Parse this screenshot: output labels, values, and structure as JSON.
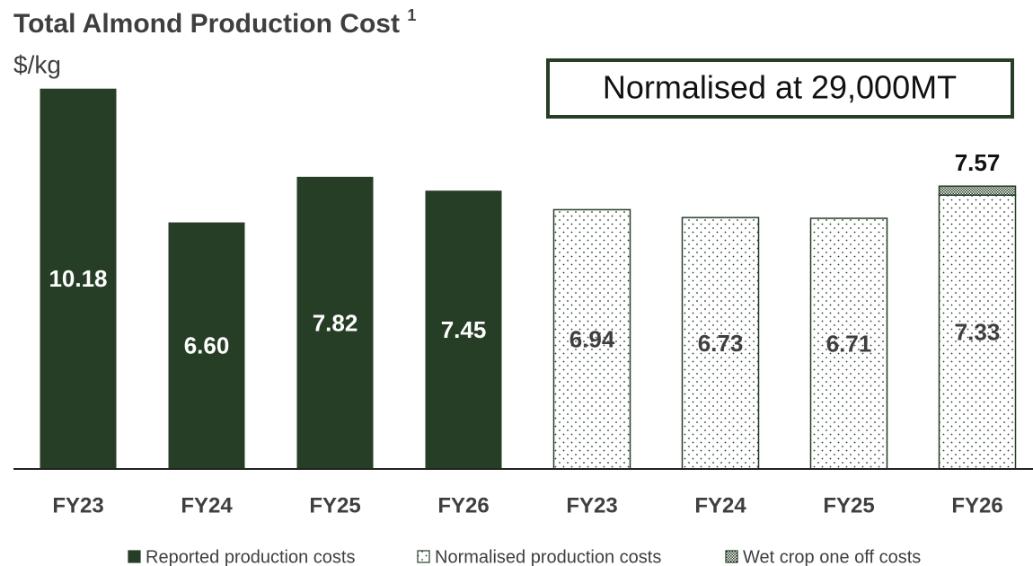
{
  "chart_data": {
    "type": "stacked_bar",
    "title": "Total Almond Production Cost",
    "title_note": "1",
    "y_label": "$/kg",
    "annotation": "Normalised at 29,000MT",
    "categories": [
      "FY23",
      "FY24",
      "FY25",
      "FY26",
      "FY23",
      "FY24",
      "FY25",
      "FY26"
    ],
    "series": [
      {
        "name": "Reported production costs",
        "color": "#263d26",
        "pattern": "solid",
        "values": [
          10.18,
          6.6,
          7.82,
          7.45,
          null,
          null,
          null,
          null
        ],
        "value_labels": [
          "10.18",
          "6.60",
          "7.82",
          "7.45",
          null,
          null,
          null,
          null
        ]
      },
      {
        "name": "Normalised production costs",
        "color": "#263d26",
        "pattern": "dots",
        "values": [
          null,
          null,
          null,
          null,
          6.94,
          6.73,
          6.71,
          7.33
        ],
        "value_labels": [
          null,
          null,
          null,
          null,
          "6.94",
          "6.73",
          "6.71",
          "7.33"
        ]
      },
      {
        "name": "Wet crop one off costs",
        "color": "#263d26",
        "pattern": "checks",
        "values": [
          null,
          null,
          null,
          null,
          null,
          null,
          null,
          0.24
        ]
      }
    ],
    "totals": [
      null,
      null,
      null,
      null,
      null,
      null,
      null,
      7.57
    ],
    "ylim": [
      0,
      12
    ],
    "legend": "bottom"
  }
}
